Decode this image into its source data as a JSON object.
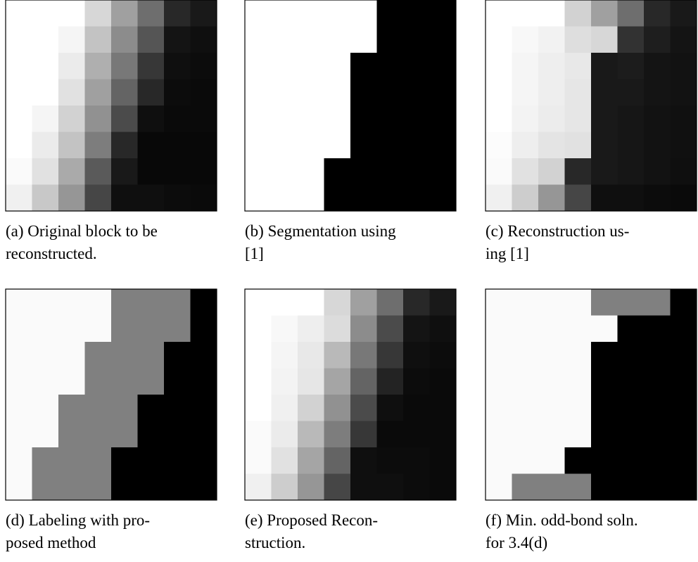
{
  "figure": {
    "panels": [
      {
        "caption": [
          "(a) Original block to be",
          "reconstructed."
        ]
      },
      {
        "caption": [
          "(b) Segmentation using",
          "[1]"
        ]
      },
      {
        "caption": [
          "(c) Reconstruction us-",
          "ing [1]"
        ]
      },
      {
        "caption": [
          "(d) Labeling with pro-",
          "posed method"
        ]
      },
      {
        "caption": [
          "(e) Proposed Recon-",
          "struction."
        ]
      },
      {
        "caption": [
          "(f) Min. odd-bond soln.",
          "for 3.4(d)"
        ]
      }
    ]
  }
}
